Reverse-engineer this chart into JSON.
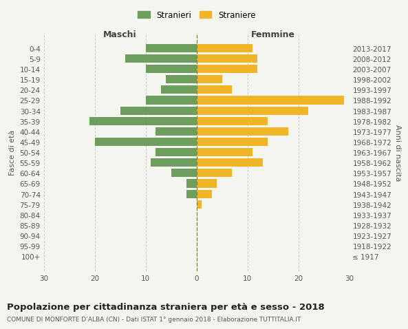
{
  "age_groups": [
    "100+",
    "95-99",
    "90-94",
    "85-89",
    "80-84",
    "75-79",
    "70-74",
    "65-69",
    "60-64",
    "55-59",
    "50-54",
    "45-49",
    "40-44",
    "35-39",
    "30-34",
    "25-29",
    "20-24",
    "15-19",
    "10-14",
    "5-9",
    "0-4"
  ],
  "birth_years": [
    "≤ 1917",
    "1918-1922",
    "1923-1927",
    "1928-1932",
    "1933-1937",
    "1938-1942",
    "1943-1947",
    "1948-1952",
    "1953-1957",
    "1958-1962",
    "1963-1967",
    "1968-1972",
    "1973-1977",
    "1978-1982",
    "1983-1987",
    "1988-1992",
    "1993-1997",
    "1998-2002",
    "2003-2007",
    "2008-2012",
    "2013-2017"
  ],
  "males": [
    0,
    0,
    0,
    0,
    0,
    0,
    2,
    2,
    5,
    9,
    8,
    20,
    8,
    21,
    15,
    10,
    7,
    6,
    10,
    14,
    10
  ],
  "females": [
    0,
    0,
    0,
    0,
    0,
    1,
    3,
    4,
    7,
    13,
    11,
    14,
    18,
    14,
    22,
    29,
    7,
    5,
    12,
    12,
    11
  ],
  "male_color": "#6e9e5e",
  "female_color": "#f0b429",
  "background_color": "#f5f5f0",
  "grid_color": "#cccccc",
  "title": "Popolazione per cittadinanza straniera per età e sesso - 2018",
  "subtitle": "COMUNE DI MONFORTE D’ALBA (CN) - Dati ISTAT 1° gennaio 2018 - Elaborazione TUTTITALIA.IT",
  "xlabel_left": "Maschi",
  "xlabel_right": "Femmine",
  "ylabel_left": "Fasce di età",
  "ylabel_right": "Anni di nascita",
  "legend_male": "Stranieri",
  "legend_female": "Straniere",
  "xlim": 30,
  "bar_height": 0.8
}
